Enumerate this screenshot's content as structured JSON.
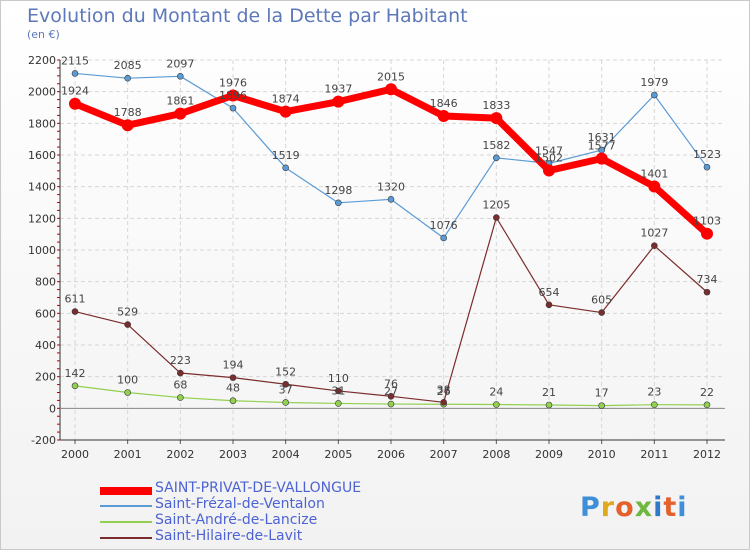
{
  "title": "Evolution du Montant de la Dette par Habitant",
  "unit_label": "(en €)",
  "logo_text": "Proxiti",
  "chart_data": {
    "type": "line",
    "title": "Evolution du Montant de la Dette par Habitant",
    "ylabel": "(en €)",
    "x": [
      "2000",
      "2001",
      "2002",
      "2003",
      "2004",
      "2005",
      "2006",
      "2007",
      "2008",
      "2009",
      "2010",
      "2011",
      "2012"
    ],
    "ylim": [
      -200,
      2200
    ],
    "yticks": [
      -200,
      0,
      200,
      400,
      600,
      800,
      1000,
      1200,
      1400,
      1600,
      1800,
      2000,
      2200
    ],
    "grid": true,
    "legend_position": "bottom",
    "series": [
      {
        "name": "SAINT-PRIVAT-DE-VALLONGUE",
        "color": "#ff0000",
        "values": [
          1924,
          1788,
          1861,
          1976,
          1874,
          1937,
          2015,
          1846,
          1833,
          1502,
          1577,
          1401,
          1103
        ]
      },
      {
        "name": "Saint-Frézal-de-Ventalon",
        "color": "#5b9bd5",
        "values": [
          2115,
          2085,
          2097,
          1896,
          1519,
          1298,
          1320,
          1076,
          1582,
          1547,
          1631,
          1979,
          1523
        ]
      },
      {
        "name": "Saint-André-de-Lancize",
        "color": "#92d050",
        "values": [
          142,
          100,
          68,
          48,
          37,
          31,
          27,
          26,
          24,
          21,
          17,
          23,
          22
        ]
      },
      {
        "name": "Saint-Hilaire-de-Lavit",
        "color": "#7b2c2c",
        "values": [
          611,
          529,
          223,
          194,
          152,
          110,
          76,
          38,
          1205,
          654,
          605,
          1027,
          734
        ]
      }
    ]
  }
}
